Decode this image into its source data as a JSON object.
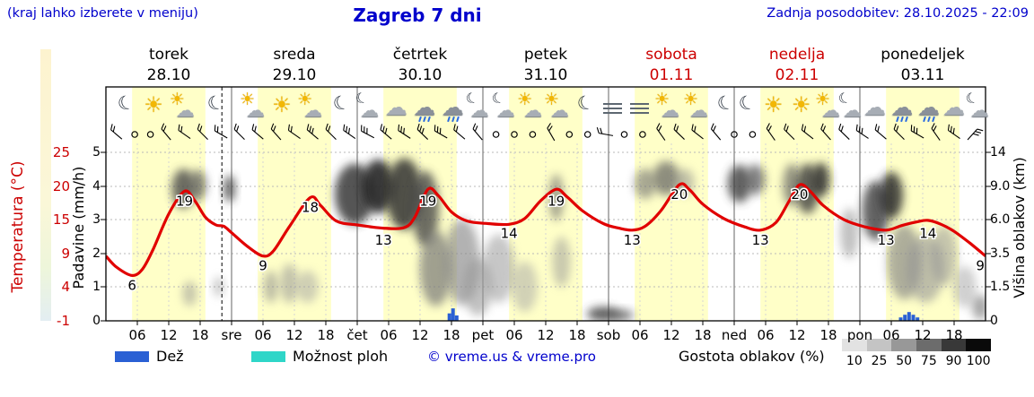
{
  "colors": {
    "blue_text": "#0000cc",
    "red_text": "#cc0000",
    "day_band": "#ffffc8",
    "grid": "#b8b8b8",
    "curve": "#e10000",
    "rain_bar": "#2a60d4",
    "showers": "#2fd6c8",
    "strip": "#fbf6d6"
  },
  "header": {
    "hint": "(kraj lahko izberete v meniju)",
    "title": "Zagreb 7 dni",
    "updated": "Zadnja posodobitev: 28.10.2025 - 22:09"
  },
  "days": [
    {
      "name": "torek",
      "date": "28.10",
      "color": "#000000"
    },
    {
      "name": "sreda",
      "date": "29.10",
      "color": "#000000"
    },
    {
      "name": "četrtek",
      "date": "30.10",
      "color": "#000000"
    },
    {
      "name": "petek",
      "date": "31.10",
      "color": "#000000"
    },
    {
      "name": "sobota",
      "date": "01.11",
      "color": "#cc0000"
    },
    {
      "name": "nedelja",
      "date": "02.11",
      "color": "#cc0000"
    },
    {
      "name": "ponedeljek",
      "date": "03.11",
      "color": "#000000"
    }
  ],
  "axes": {
    "temp_label": "Temperatura (°C)",
    "temp_ticks": [
      "25",
      "20",
      "15",
      "9",
      "4",
      "-1"
    ],
    "precip_label": "Padavine (mm/h)",
    "precip_ticks": [
      "5",
      "4",
      "3",
      "2",
      "1",
      "0"
    ],
    "cloud_label": "Višina oblakov (km)",
    "cloud_ticks": [
      "14",
      "9.0",
      "6.0",
      "3.5",
      "1.5",
      "0"
    ]
  },
  "xaxis": {
    "labels": [
      "06",
      "12",
      "18",
      "sre",
      "06",
      "12",
      "18",
      "čet",
      "06",
      "12",
      "18",
      "pet",
      "06",
      "12",
      "18",
      "sob",
      "06",
      "12",
      "18",
      "ned",
      "06",
      "12",
      "18",
      "pon",
      "06",
      "12",
      "18"
    ]
  },
  "icons": [
    [
      3.8,
      "moon"
    ],
    [
      9.3,
      "sun"
    ],
    [
      14.9,
      "sun-cloud"
    ],
    [
      20.9,
      "moon"
    ],
    [
      28.3,
      "sun-cloud"
    ],
    [
      33.8,
      "sun"
    ],
    [
      39.3,
      "sun-cloud"
    ],
    [
      44.9,
      "moon"
    ],
    [
      50.1,
      "moon-cloud"
    ],
    [
      55.5,
      "cloud"
    ],
    [
      60.9,
      "rain"
    ],
    [
      66.3,
      "rain"
    ],
    [
      71.1,
      "moon-cloud"
    ],
    [
      76.1,
      "moon-cloud"
    ],
    [
      81.3,
      "sun-cloud"
    ],
    [
      86.4,
      "sun-cloud"
    ],
    [
      91.5,
      "moon"
    ],
    [
      96.9,
      "fog"
    ],
    [
      102,
      "fog"
    ],
    [
      107.5,
      "sun-cloud"
    ],
    [
      113,
      "sun-cloud"
    ],
    [
      118.3,
      "moon"
    ],
    [
      122.4,
      "moon"
    ],
    [
      127.7,
      "sun"
    ],
    [
      133,
      "sun"
    ],
    [
      138.2,
      "sun-cloud"
    ],
    [
      142.3,
      "moon-cloud"
    ],
    [
      146.9,
      "cloud"
    ],
    [
      152.1,
      "rain"
    ],
    [
      157.2,
      "rain"
    ],
    [
      162,
      "cloud"
    ],
    [
      166.6,
      "moon-cloud"
    ]
  ],
  "wind": [
    [
      2,
      "b",
      -50
    ],
    [
      5.5,
      "c",
      0
    ],
    [
      8.5,
      "c",
      0
    ],
    [
      11.5,
      "b",
      -40
    ],
    [
      15,
      "b",
      -55
    ],
    [
      18.5,
      "b",
      -45
    ],
    [
      22,
      "b",
      -60
    ],
    [
      25.5,
      "b",
      -45
    ],
    [
      29,
      "b",
      -50
    ],
    [
      32.5,
      "b",
      -42
    ],
    [
      36,
      "b",
      -55
    ],
    [
      39.5,
      "B",
      -50
    ],
    [
      43,
      "b",
      -45
    ],
    [
      46.5,
      "B",
      -55
    ],
    [
      50,
      "B",
      -62
    ],
    [
      53.5,
      "B",
      -50
    ],
    [
      57,
      "B",
      -57
    ],
    [
      60.5,
      "B",
      -46
    ],
    [
      64,
      "B",
      -60
    ],
    [
      67.5,
      "b",
      -50
    ],
    [
      71,
      "b",
      -40
    ],
    [
      74.5,
      "c",
      0
    ],
    [
      78,
      "c",
      0
    ],
    [
      81.5,
      "c",
      0
    ],
    [
      85,
      "b",
      -30
    ],
    [
      88.5,
      "c",
      0
    ],
    [
      92,
      "c",
      0
    ],
    [
      95.5,
      "b",
      -80
    ],
    [
      99,
      "c",
      0
    ],
    [
      102.5,
      "c",
      0
    ],
    [
      106,
      "b",
      -35
    ],
    [
      109.5,
      "b",
      -46
    ],
    [
      113,
      "b",
      -52
    ],
    [
      116.5,
      "b",
      -40
    ],
    [
      120,
      "c",
      0
    ],
    [
      123.5,
      "c",
      0
    ],
    [
      127,
      "b",
      -35
    ],
    [
      130.5,
      "b",
      -45
    ],
    [
      134,
      "b",
      -52
    ],
    [
      137.5,
      "b",
      -42
    ],
    [
      141,
      "b",
      -46
    ],
    [
      144.5,
      "B",
      -56
    ],
    [
      148,
      "b",
      -50
    ],
    [
      151.5,
      "b",
      -45
    ],
    [
      155,
      "B",
      -60
    ],
    [
      158.5,
      "b",
      -35
    ],
    [
      162,
      "B",
      -55
    ],
    [
      165.5,
      "B",
      42
    ]
  ],
  "legend": {
    "rain": "Dež",
    "showers": "Možnost ploh",
    "copyright": "© vreme.us & vreme.pro",
    "cloud_density": "Gostota oblakov (%)",
    "cloud_scale": [
      "10",
      "25",
      "50",
      "75",
      "90",
      "100"
    ],
    "cloud_scale_colors": [
      "#e2e2e2",
      "#c4c4c4",
      "#989898",
      "#6c6c6c",
      "#383838",
      "#0a0a0a"
    ]
  },
  "chart_data": {
    "type": "line",
    "title": "Zagreb 7 dni",
    "x_axis": "hours from 28.10 00:00, 7 days, ticks every 6 h",
    "now_hour": 22.15,
    "day_band_hours": [
      5,
      19
    ],
    "temperature": {
      "label": "Temperatura (°C)",
      "color": "#e10000",
      "range": [
        -1,
        25
      ],
      "points": [
        [
          0,
          9
        ],
        [
          2,
          7.3
        ],
        [
          5,
          6
        ],
        [
          7,
          7
        ],
        [
          9,
          10
        ],
        [
          12,
          15.5
        ],
        [
          15,
          19
        ],
        [
          17,
          17.5
        ],
        [
          19,
          15
        ],
        [
          21,
          13.8
        ],
        [
          22.5,
          13.6
        ],
        [
          24,
          12.6
        ],
        [
          27,
          10.5
        ],
        [
          30,
          9
        ],
        [
          32,
          9.8
        ],
        [
          35,
          13.5
        ],
        [
          39,
          18
        ],
        [
          41,
          16.8
        ],
        [
          44,
          14.4
        ],
        [
          48,
          13.8
        ],
        [
          53,
          13.3
        ],
        [
          57,
          13.4
        ],
        [
          59,
          15
        ],
        [
          61.5,
          19.3
        ],
        [
          63.5,
          18.3
        ],
        [
          66,
          15.8
        ],
        [
          69,
          14.4
        ],
        [
          73,
          14
        ],
        [
          77,
          13.9
        ],
        [
          80,
          14.8
        ],
        [
          83,
          17.5
        ],
        [
          86,
          19.3
        ],
        [
          88,
          18.2
        ],
        [
          91,
          16
        ],
        [
          95,
          14
        ],
        [
          98,
          13.3
        ],
        [
          100.5,
          13
        ],
        [
          103,
          13.6
        ],
        [
          106,
          16
        ],
        [
          109.5,
          20
        ],
        [
          111.5,
          19.2
        ],
        [
          114,
          17
        ],
        [
          118,
          14.8
        ],
        [
          122,
          13.5
        ],
        [
          125,
          13
        ],
        [
          128,
          14.2
        ],
        [
          130.5,
          17.5
        ],
        [
          132.5,
          20
        ],
        [
          134.5,
          19
        ],
        [
          137,
          16.8
        ],
        [
          141,
          14.6
        ],
        [
          145,
          13.5
        ],
        [
          149,
          13
        ],
        [
          152,
          13.7
        ],
        [
          155,
          14.3
        ],
        [
          157,
          14.5
        ],
        [
          159.5,
          13.9
        ],
        [
          162,
          12.8
        ],
        [
          165,
          11
        ],
        [
          168,
          9
        ]
      ],
      "peak_labels": [
        [
          "6",
          5
        ],
        [
          "19",
          15
        ],
        [
          "9",
          30
        ],
        [
          "18",
          39
        ],
        [
          "13",
          53
        ],
        [
          "19",
          61.5
        ],
        [
          "14",
          77
        ],
        [
          "19",
          86
        ],
        [
          "13",
          100.5
        ],
        [
          "20",
          109.5
        ],
        [
          "13",
          125
        ],
        [
          "20",
          132.5
        ],
        [
          "13",
          149
        ],
        [
          "14",
          157
        ],
        [
          "9",
          167
        ]
      ]
    },
    "precipitation": {
      "label": "Padavine (mm/h)",
      "color": "#2a60d4",
      "range": [
        0,
        5
      ],
      "bars": [
        [
          65.6,
          0.22
        ],
        [
          66.3,
          0.37
        ],
        [
          67,
          0.16
        ],
        [
          151.8,
          0.1
        ],
        [
          152.6,
          0.18
        ],
        [
          153.4,
          0.26
        ],
        [
          154.2,
          0.18
        ],
        [
          155,
          0.1
        ]
      ]
    },
    "cloud_height": {
      "label": "Višina oblakov (km)",
      "ticks_km": [
        0,
        1.5,
        3.5,
        6,
        9,
        14
      ],
      "blobs": [
        [
          14.8,
          8.8,
          13,
          22,
          "#4a4a4a",
          0.8
        ],
        [
          17.5,
          9.2,
          10,
          17,
          "#5a5a5a",
          0.7
        ],
        [
          23.6,
          8.8,
          6,
          15,
          "#3a3a3a",
          0.8
        ],
        [
          16,
          1.2,
          8,
          14,
          "#909090",
          0.5
        ],
        [
          21.5,
          1.5,
          5,
          11,
          "#8a8a8a",
          0.5
        ],
        [
          31.5,
          1.5,
          8,
          18,
          "#8a8a8a",
          0.55
        ],
        [
          35,
          1.7,
          10,
          22,
          "#949494",
          0.55
        ],
        [
          38.5,
          1.5,
          12,
          18,
          "#a0a0a0",
          0.5
        ],
        [
          47.5,
          8.3,
          22,
          34,
          "#383838",
          0.85
        ],
        [
          52,
          9,
          18,
          30,
          "#262626",
          0.9
        ],
        [
          57,
          8.3,
          20,
          40,
          "#333333",
          0.85
        ],
        [
          61,
          7,
          15,
          42,
          "#484848",
          0.8
        ],
        [
          63,
          2.6,
          18,
          42,
          "#787878",
          0.7
        ],
        [
          68,
          3,
          20,
          48,
          "#8a8a8a",
          0.65
        ],
        [
          71,
          1.5,
          16,
          32,
          "#989898",
          0.6
        ],
        [
          75,
          2.6,
          18,
          38,
          "#9a9a9a",
          0.55
        ],
        [
          80,
          1.5,
          14,
          28,
          "#a4a4a4",
          0.5
        ],
        [
          86,
          8,
          8,
          26,
          "#6a6a6a",
          0.6
        ],
        [
          87,
          3,
          10,
          28,
          "#949494",
          0.5
        ],
        [
          95,
          0.3,
          18,
          8,
          "#3a3a3a",
          0.8
        ],
        [
          98.5,
          0.25,
          13,
          6,
          "#4a4a4a",
          0.7
        ],
        [
          103,
          9.4,
          12,
          17,
          "#707070",
          0.6
        ],
        [
          107,
          10.2,
          15,
          19,
          "#5e5e5e",
          0.7
        ],
        [
          110.5,
          9.6,
          11,
          15,
          "#868686",
          0.5
        ],
        [
          121,
          9.4,
          13,
          21,
          "#3e3e3e",
          0.8
        ],
        [
          124,
          10,
          11,
          17,
          "#525252",
          0.7
        ],
        [
          131,
          9.2,
          10,
          24,
          "#5e5e5e",
          0.65
        ],
        [
          134,
          8.8,
          13,
          28,
          "#3e3e3e",
          0.8
        ],
        [
          136.5,
          10,
          10,
          19,
          "#2e2e2e",
          0.85
        ],
        [
          142,
          5,
          10,
          28,
          "#868686",
          0.5
        ],
        [
          147,
          6.8,
          15,
          33,
          "#3e3e3e",
          0.8
        ],
        [
          150,
          8.2,
          13,
          26,
          "#2c2c2c",
          0.85
        ],
        [
          152.5,
          3,
          19,
          42,
          "#848484",
          0.65
        ],
        [
          156.5,
          2.6,
          21,
          38,
          "#949494",
          0.6
        ],
        [
          160,
          3.4,
          15,
          33,
          "#969696",
          0.55
        ],
        [
          164,
          1.5,
          13,
          23,
          "#a2a2a2",
          0.5
        ],
        [
          167,
          0.6,
          9,
          14,
          "#6e6e6e",
          0.6
        ]
      ]
    }
  }
}
